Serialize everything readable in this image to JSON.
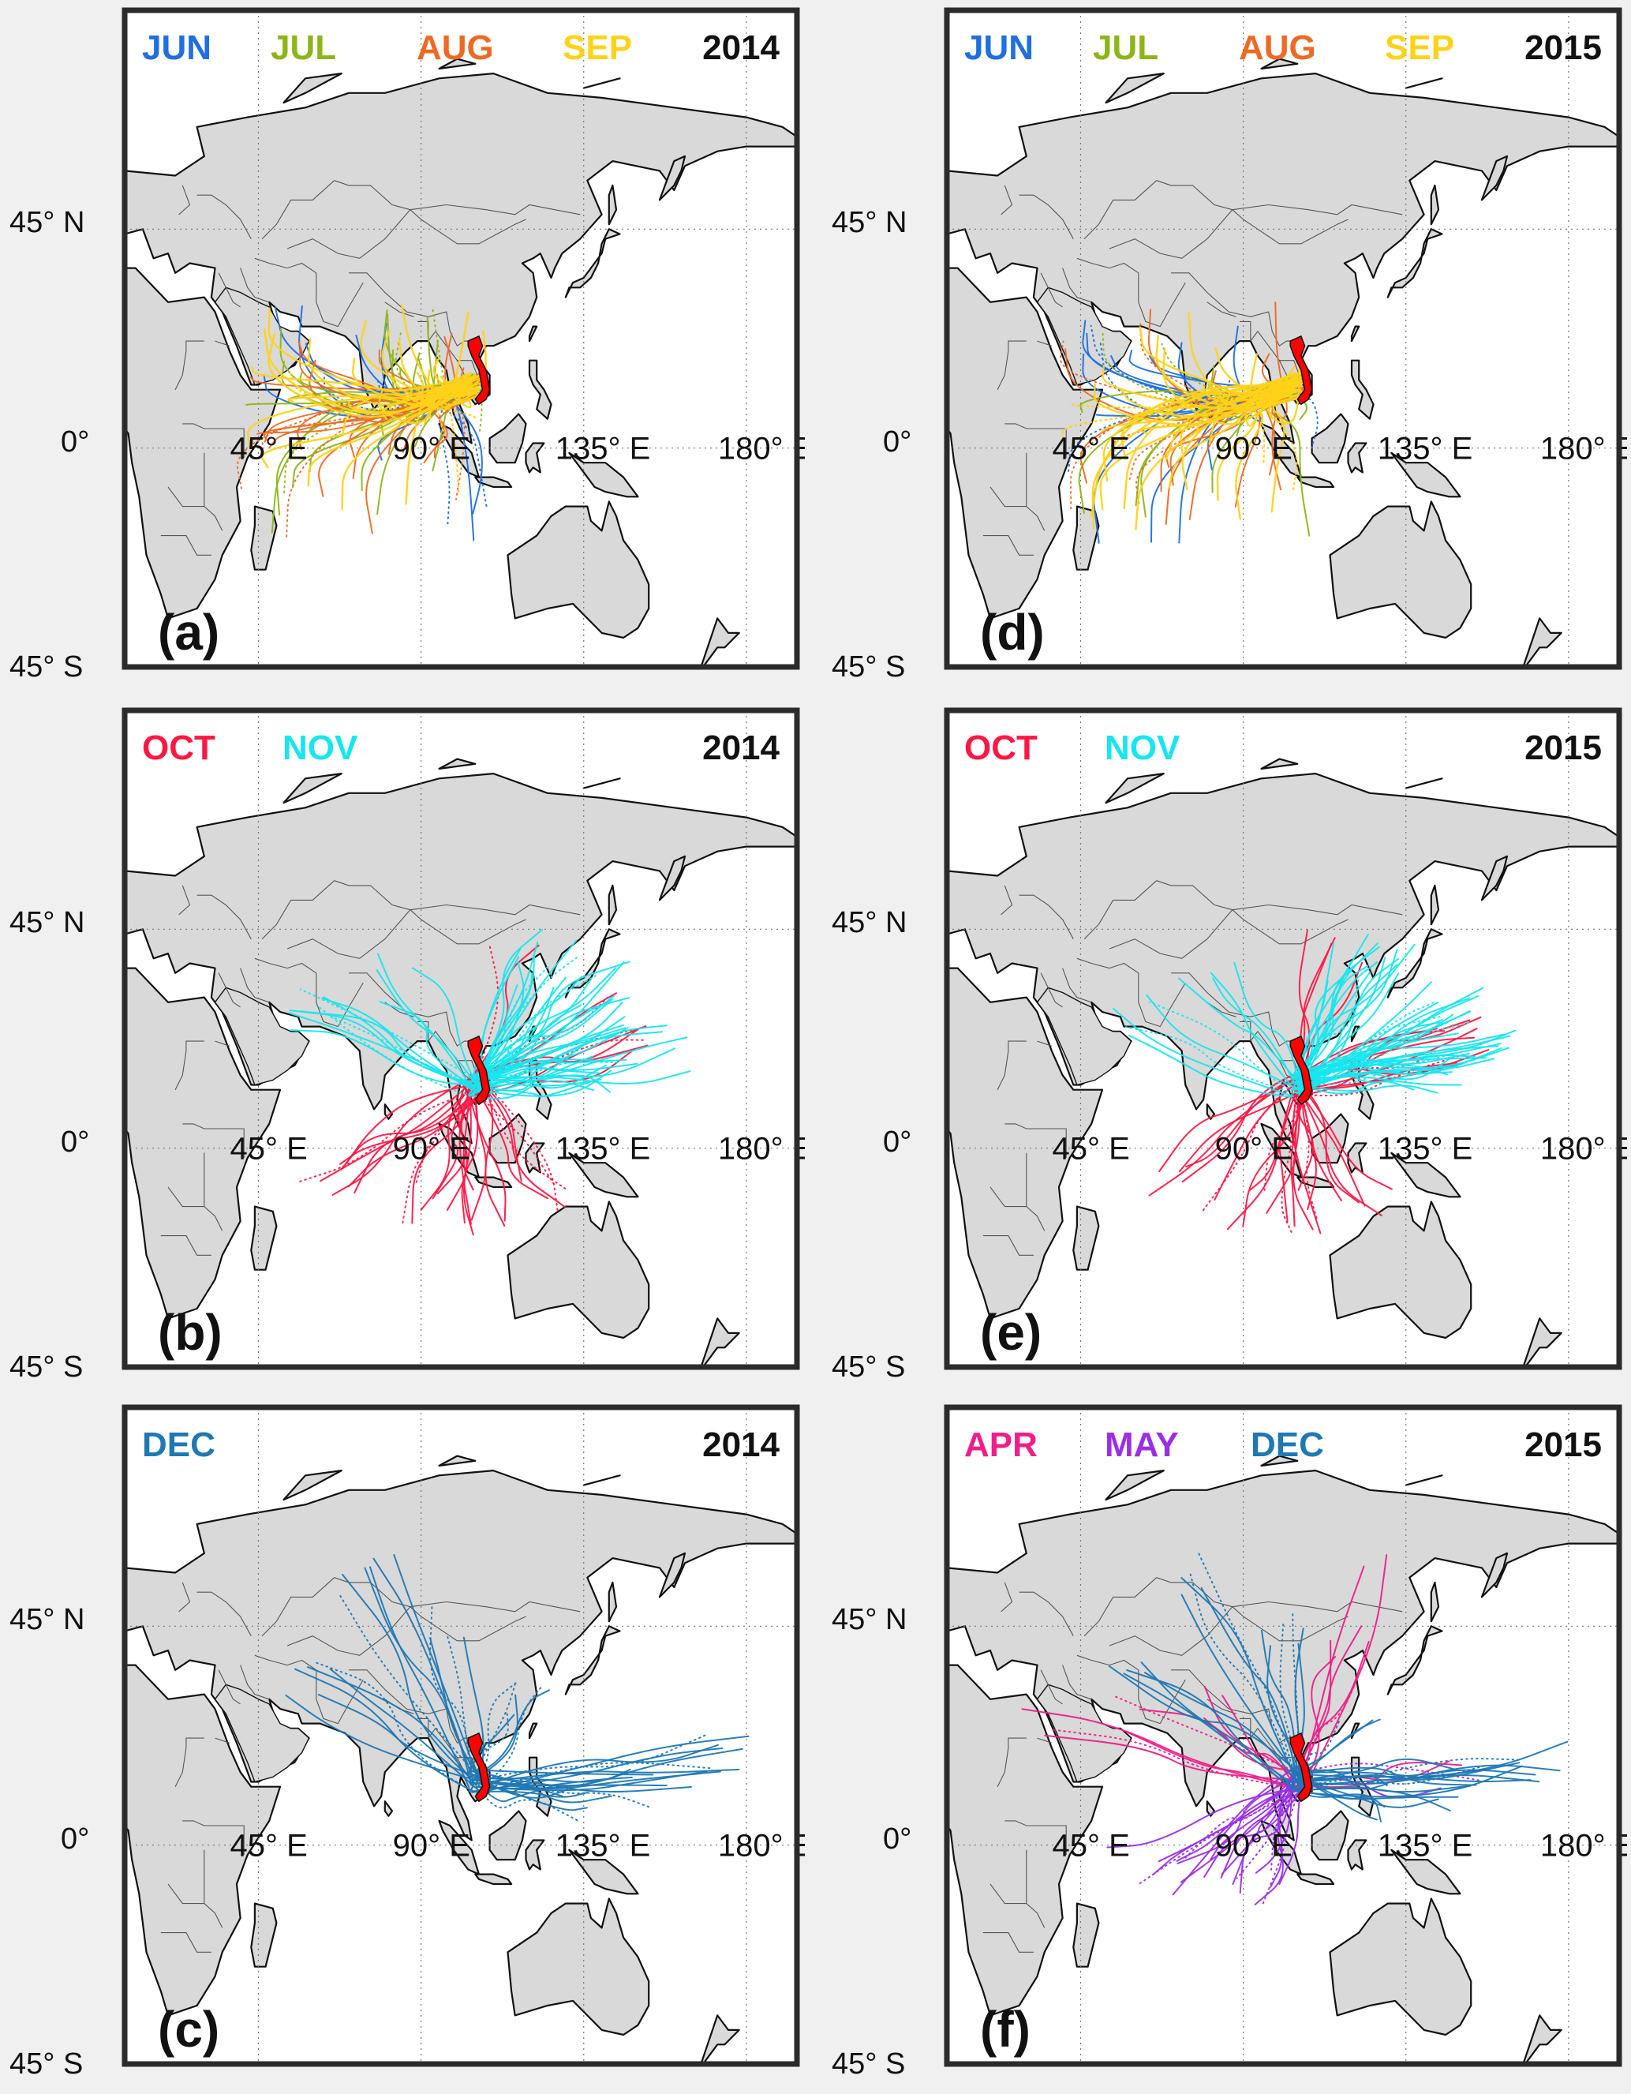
{
  "figure": {
    "lat_labels": [
      "45° N",
      "0°",
      "45° S"
    ],
    "lon_labels": [
      "45° E",
      "90° E",
      "135° E",
      "180° E"
    ],
    "colors": {
      "JUN": "#1f6fe0",
      "JUL": "#8db51a",
      "AUG": "#ec6a25",
      "SEP": "#ffd21a",
      "OCT": "#ff1744",
      "NOV": "#18e6ee",
      "DEC": "#1f78b4",
      "APR": "#ee1f8a",
      "MAY": "#9b2fe6",
      "land": "#d9d9d9",
      "coast": "#111111",
      "source_region": "#ff0000"
    }
  },
  "panels": [
    {
      "label": "(a)",
      "year": "2014",
      "months": [
        "JUN",
        "JUL",
        "AUG",
        "SEP"
      ]
    },
    {
      "label": "(b)",
      "year": "2014",
      "months": [
        "OCT",
        "NOV"
      ]
    },
    {
      "label": "(c)",
      "year": "2014",
      "months": [
        "DEC"
      ]
    },
    {
      "label": "(d)",
      "year": "2015",
      "months": [
        "JUN",
        "JUL",
        "AUG",
        "SEP"
      ]
    },
    {
      "label": "(e)",
      "year": "2015",
      "months": [
        "OCT",
        "NOV"
      ]
    },
    {
      "label": "(f)",
      "year": "2015",
      "months": [
        "APR",
        "MAY",
        "DEC"
      ]
    }
  ]
}
